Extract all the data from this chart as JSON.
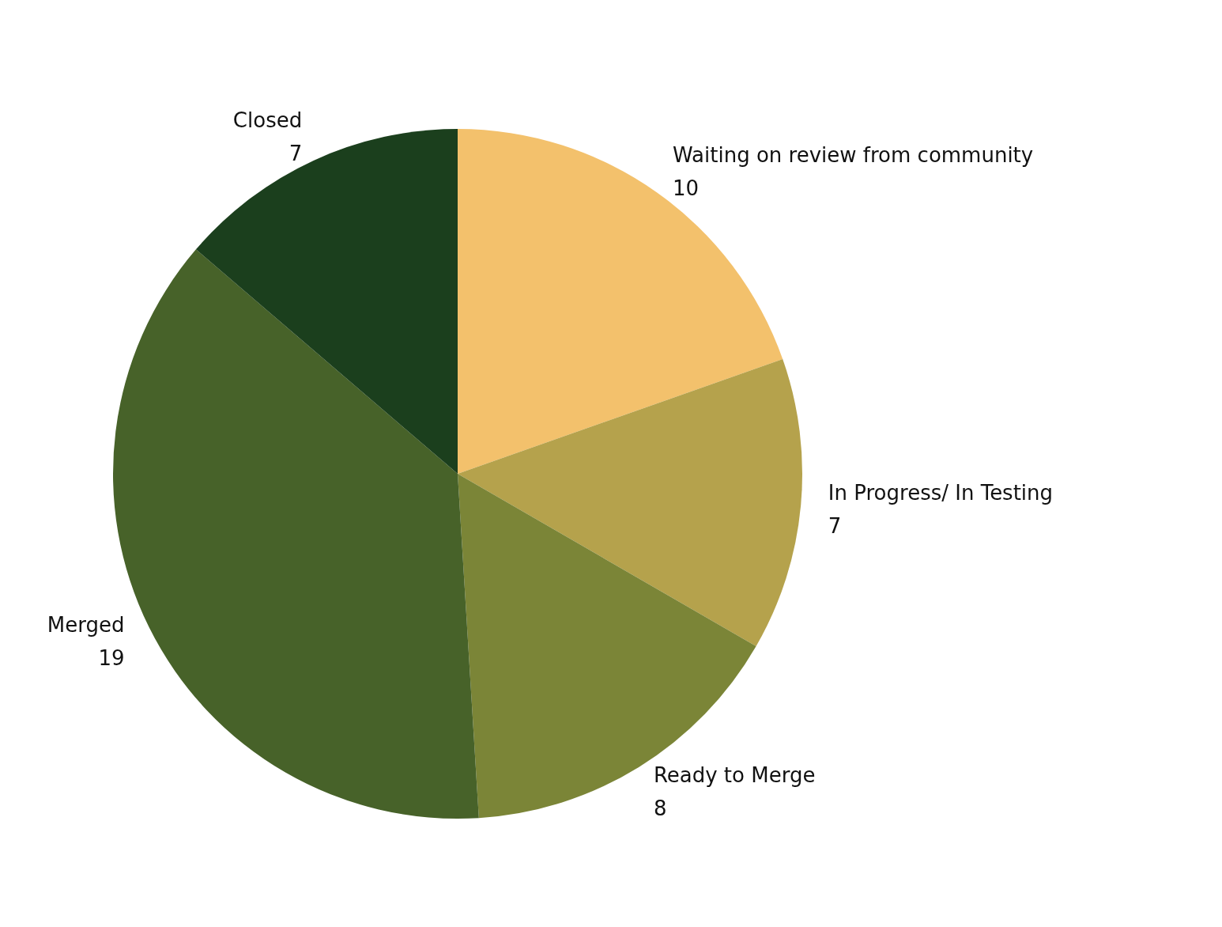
{
  "chart_data": {
    "type": "pie",
    "categories": [
      "Waiting on review from community",
      "In Progress/ In Testing",
      "Ready to Merge",
      "Merged",
      "Closed"
    ],
    "values": [
      10,
      7,
      8,
      19,
      7
    ],
    "colors": [
      "#f3c16c",
      "#b5a24c",
      "#7b8537",
      "#476229",
      "#1b3f1d"
    ],
    "data_labels": true,
    "legend": false
  }
}
